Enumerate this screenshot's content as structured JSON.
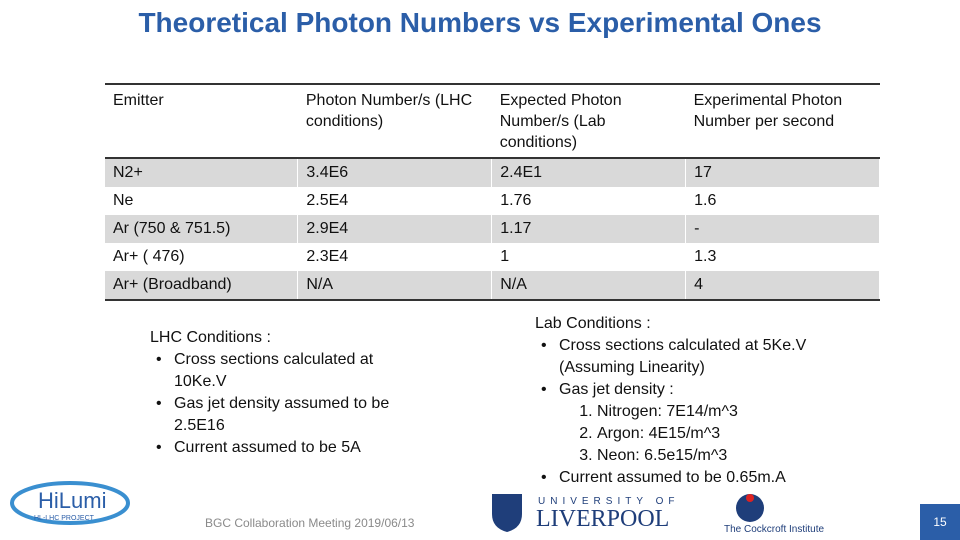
{
  "header": {
    "title": "Theoretical Photon Numbers vs Experimental Ones"
  },
  "table": {
    "columns": [
      "Emitter",
      "Photon Number/s (LHC conditions)",
      "Expected Photon Number/s (Lab conditions)",
      "Experimental Photon Number per second"
    ],
    "rows": [
      [
        "N2+",
        "3.4E6",
        "2.4E1",
        "17"
      ],
      [
        "Ne",
        "2.5E4",
        "1.76",
        "1.6"
      ],
      [
        "Ar (750 & 751.5)",
        "2.9E4",
        "1.17",
        "-"
      ],
      [
        "Ar+ ( 476)",
        "2.3E4",
        "1",
        "1.3"
      ],
      [
        "Ar+ (Broadband)",
        "N/A",
        "N/A",
        "4"
      ]
    ]
  },
  "notes": {
    "lhc": {
      "heading": "LHC Conditions :",
      "items": [
        "Cross sections calculated at 10Ke.V",
        "Gas jet density assumed to be 2.5E16",
        "Current assumed to be 5A"
      ]
    },
    "lab": {
      "heading": "Lab Conditions :",
      "items": [
        {
          "text": "Cross sections calculated at 5Ke.V (Assuming Linearity)",
          "subitems": []
        },
        {
          "text": "Gas jet density :",
          "subitems": [
            "Nitrogen: 7E14/m^3",
            "Argon: 4E15/m^3",
            "Neon: 6.5e15/m^3"
          ]
        },
        {
          "text": "Current assumed to be 0.65m.A",
          "subitems": []
        }
      ]
    }
  },
  "footer": {
    "text": "BGC Collaboration Meeting  2019/06/13",
    "page": "15"
  },
  "logos": {
    "hilumi": "HiLumi",
    "hilumi_sub": "HL-LHC PROJECT",
    "liverpool_top": "UNIVERSITY OF",
    "liverpool": "LIVERPOOL",
    "cockcroft": "The Cockcroft Institute"
  }
}
